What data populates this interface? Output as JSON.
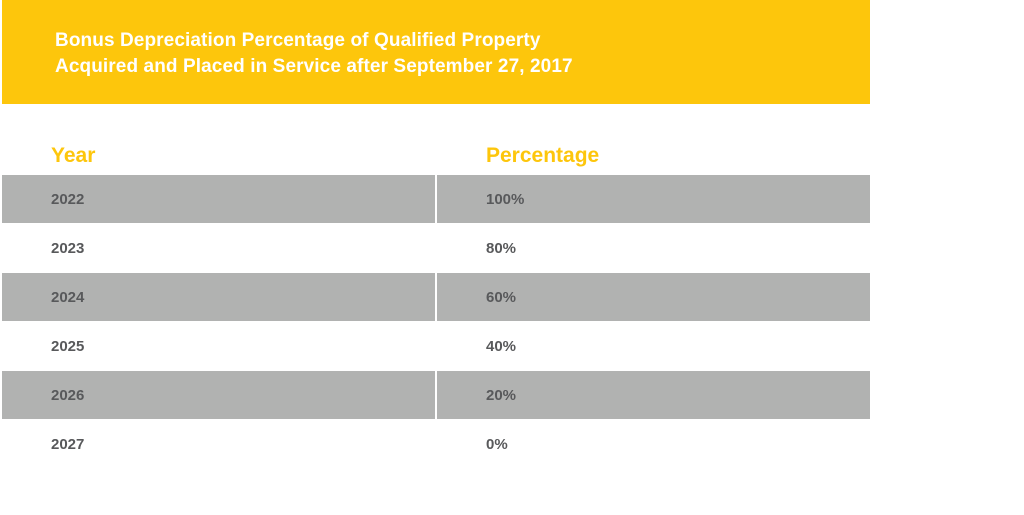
{
  "title": {
    "line1": "Bonus Depreciation Percentage of Qualified Property",
    "line2": "Acquired and Placed in Service after September 27, 2017"
  },
  "table": {
    "headers": {
      "year": "Year",
      "percentage": "Percentage"
    },
    "rows": [
      {
        "year": "2022",
        "percentage": "100%"
      },
      {
        "year": "2023",
        "percentage": "80%"
      },
      {
        "year": "2024",
        "percentage": "60%"
      },
      {
        "year": "2025",
        "percentage": "40%"
      },
      {
        "year": "2026",
        "percentage": "20%"
      },
      {
        "year": "2027",
        "percentage": "0%"
      }
    ]
  },
  "colors": {
    "accent": "#fdc60c",
    "row_shade": "#b1b2b1",
    "cell_text": "#58595b"
  }
}
